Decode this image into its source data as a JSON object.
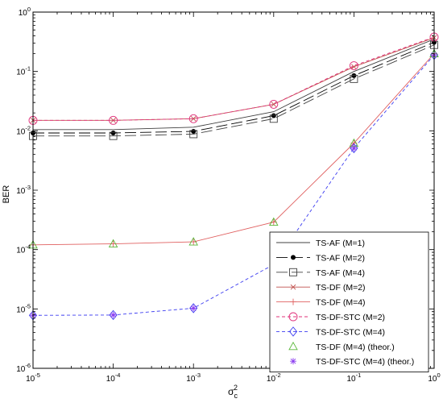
{
  "chart_data": {
    "type": "line",
    "xscale": "log",
    "yscale": "log",
    "xlim": [
      1e-05,
      1
    ],
    "ylim": [
      1e-06,
      1
    ],
    "xlabel_base": "σ",
    "xlabel_sup": "2",
    "xlabel_sub": "c",
    "ylabel": "BER",
    "x_ticks": [
      1e-05,
      0.0001,
      0.001,
      0.01,
      0.1,
      1
    ],
    "x_tick_labels": [
      [
        "10",
        "-5"
      ],
      [
        "10",
        "-4"
      ],
      [
        "10",
        "-3"
      ],
      [
        "10",
        "-2"
      ],
      [
        "10",
        "-1"
      ],
      [
        "10",
        "0"
      ]
    ],
    "y_ticks": [
      1e-06,
      1e-05,
      0.0001,
      0.001,
      0.01,
      0.1,
      1
    ],
    "y_tick_labels": [
      [
        "10",
        "-6"
      ],
      [
        "10",
        "-5"
      ],
      [
        "10",
        "-4"
      ],
      [
        "10",
        "-3"
      ],
      [
        "10",
        "-2"
      ],
      [
        "10",
        "-1"
      ],
      [
        "10",
        "0"
      ]
    ],
    "grid": false,
    "legend_position": "bottom-right",
    "series": [
      {
        "name": "TS-AF (M=1)",
        "color": "#404040",
        "dash": "",
        "marker": "none",
        "x": [
          1e-05,
          0.0001,
          0.001,
          0.01,
          0.1,
          1
        ],
        "y": [
          0.0105,
          0.0105,
          0.0115,
          0.021,
          0.1,
          0.35
        ]
      },
      {
        "name": "TS-AF (M=2)",
        "color": "#000000",
        "dash": "14,5",
        "marker": "dot",
        "x": [
          1e-05,
          0.0001,
          0.001,
          0.01,
          0.1,
          1
        ],
        "y": [
          0.0092,
          0.0092,
          0.0098,
          0.018,
          0.085,
          0.31
        ]
      },
      {
        "name": "TS-AF (M=4)",
        "color": "#404040",
        "dash": "14,5",
        "marker": "square",
        "x": [
          1e-05,
          0.0001,
          0.001,
          0.01,
          0.1,
          1
        ],
        "y": [
          0.0082,
          0.0082,
          0.0088,
          0.016,
          0.075,
          0.28
        ]
      },
      {
        "name": "TS-DF (M=2)",
        "color": "#c0504d",
        "dash": "",
        "marker": "x",
        "x": [
          1e-05,
          0.0001,
          0.001,
          0.01,
          0.1,
          1
        ],
        "y": [
          0.015,
          0.015,
          0.016,
          0.028,
          0.12,
          0.37
        ]
      },
      {
        "name": "TS-DF (M=4)",
        "color": "#e06060",
        "dash": "",
        "marker": "plus",
        "x": [
          1e-05,
          0.0001,
          0.001,
          0.01,
          0.1,
          1
        ],
        "y": [
          0.00012,
          0.000125,
          0.000135,
          0.00029,
          0.0062,
          0.2
        ]
      },
      {
        "name": "TS-DF-STC (M=2)",
        "color": "#e0307a",
        "dash": "4,3",
        "marker": "circle",
        "x": [
          1e-05,
          0.0001,
          0.001,
          0.01,
          0.1,
          1
        ],
        "y": [
          0.015,
          0.015,
          0.016,
          0.028,
          0.125,
          0.38
        ]
      },
      {
        "name": "TS-DF-STC (M=4)",
        "color": "#3c3cf0",
        "dash": "4,3",
        "marker": "diamond",
        "x": [
          1e-05,
          0.0001,
          0.001,
          0.01,
          0.1,
          1
        ],
        "y": [
          7.8e-06,
          7.9e-06,
          1.03e-05,
          5.6e-05,
          0.0051,
          0.19
        ]
      },
      {
        "name": "TS-DF (M=4) (theor.)",
        "color": "#5ab83a",
        "dash": "",
        "marker": "triangle",
        "line": false,
        "x": [
          1e-05,
          0.0001,
          0.001,
          0.01,
          0.1,
          1
        ],
        "y": [
          0.00012,
          0.000125,
          0.000135,
          0.00029,
          0.0062,
          0.2
        ]
      },
      {
        "name": "TS-DF-STC (M=4) (theor.)",
        "color": "#8b3cf0",
        "dash": "",
        "marker": "star",
        "line": false,
        "x": [
          1e-05,
          0.0001,
          0.001,
          0.01,
          0.1,
          1
        ],
        "y": [
          7.8e-06,
          7.9e-06,
          1.03e-05,
          5.6e-05,
          0.0051,
          0.19
        ]
      }
    ]
  }
}
